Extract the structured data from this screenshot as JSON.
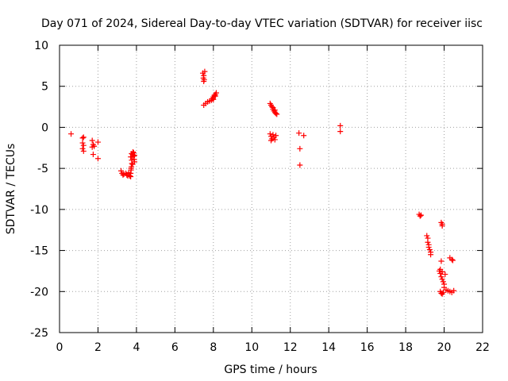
{
  "chart_data": {
    "type": "scatter",
    "title": "Day 071 of 2024, Sidereal Day-to-day VTEC variation (SDTVAR) for receiver iisc",
    "xlabel": "GPS time / hours",
    "ylabel": "SDTVAR / TECUs",
    "xlim": [
      0,
      22
    ],
    "ylim": [
      -25,
      10
    ],
    "xticks": [
      0,
      2,
      4,
      6,
      8,
      10,
      12,
      14,
      16,
      18,
      20,
      22
    ],
    "yticks": [
      -25,
      -20,
      -15,
      -10,
      -5,
      0,
      5,
      10
    ],
    "grid": true,
    "marker": "+",
    "color": "#ff0000",
    "series": [
      {
        "name": "SDTVAR",
        "points": [
          [
            0.6,
            -0.8
          ],
          [
            1.2,
            -1.3
          ],
          [
            1.25,
            -1.2
          ],
          [
            1.2,
            -1.9
          ],
          [
            1.25,
            -2.2
          ],
          [
            1.2,
            -2.6
          ],
          [
            1.25,
            -2.9
          ],
          [
            1.7,
            -1.6
          ],
          [
            1.75,
            -2.1
          ],
          [
            1.7,
            -2.4
          ],
          [
            1.8,
            -2.3
          ],
          [
            1.75,
            -3.3
          ],
          [
            2.0,
            -1.8
          ],
          [
            2.0,
            -3.8
          ],
          [
            3.2,
            -5.3
          ],
          [
            3.25,
            -5.6
          ],
          [
            3.3,
            -5.8
          ],
          [
            3.35,
            -5.7
          ],
          [
            3.45,
            -5.6
          ],
          [
            3.5,
            -5.8
          ],
          [
            3.55,
            -5.9
          ],
          [
            3.6,
            -5.5
          ],
          [
            3.65,
            -5.9
          ],
          [
            3.7,
            -6.0
          ],
          [
            3.7,
            -5.6
          ],
          [
            3.72,
            -5.2
          ],
          [
            3.74,
            -4.8
          ],
          [
            3.76,
            -4.4
          ],
          [
            3.75,
            -4.0
          ],
          [
            3.78,
            -3.6
          ],
          [
            3.8,
            -3.3
          ],
          [
            3.82,
            -3.0
          ],
          [
            3.85,
            -3.5
          ],
          [
            3.88,
            -3.9
          ],
          [
            3.9,
            -4.2
          ],
          [
            3.7,
            -3.6
          ],
          [
            3.75,
            -3.2
          ],
          [
            3.8,
            -4.5
          ],
          [
            3.85,
            -3.1
          ],
          [
            3.9,
            -3.4
          ],
          [
            3.72,
            -5.0
          ],
          [
            7.45,
            6.6
          ],
          [
            7.5,
            6.3
          ],
          [
            7.48,
            6.0
          ],
          [
            7.52,
            5.8
          ],
          [
            7.55,
            6.8
          ],
          [
            7.5,
            5.6
          ],
          [
            7.5,
            2.7
          ],
          [
            7.6,
            2.9
          ],
          [
            7.7,
            3.1
          ],
          [
            7.8,
            3.2
          ],
          [
            7.9,
            3.3
          ],
          [
            7.95,
            3.5
          ],
          [
            8.0,
            3.7
          ],
          [
            8.05,
            3.9
          ],
          [
            8.1,
            4.0
          ],
          [
            8.15,
            4.2
          ],
          [
            8.0,
            3.4
          ],
          [
            8.1,
            3.8
          ],
          [
            10.95,
            2.9
          ],
          [
            11.0,
            2.7
          ],
          [
            11.05,
            2.5
          ],
          [
            11.1,
            2.2
          ],
          [
            11.15,
            2.0
          ],
          [
            11.2,
            1.8
          ],
          [
            11.25,
            1.7
          ],
          [
            11.3,
            1.6
          ],
          [
            11.1,
            2.4
          ],
          [
            11.2,
            2.1
          ],
          [
            10.95,
            -0.8
          ],
          [
            11.0,
            -1.1
          ],
          [
            11.05,
            -1.4
          ],
          [
            11.1,
            -0.9
          ],
          [
            11.15,
            -1.2
          ],
          [
            11.2,
            -1.5
          ],
          [
            11.25,
            -1.0
          ],
          [
            11.0,
            -1.6
          ],
          [
            12.45,
            -0.7
          ],
          [
            12.7,
            -1.0
          ],
          [
            12.5,
            -2.6
          ],
          [
            12.5,
            -4.6
          ],
          [
            14.6,
            0.2
          ],
          [
            14.6,
            -0.5
          ],
          [
            18.7,
            -10.6
          ],
          [
            18.75,
            -10.8
          ],
          [
            18.8,
            -10.7
          ],
          [
            19.1,
            -13.2
          ],
          [
            19.15,
            -13.5
          ],
          [
            19.15,
            -14.0
          ],
          [
            19.2,
            -14.3
          ],
          [
            19.2,
            -14.6
          ],
          [
            19.25,
            -14.9
          ],
          [
            19.3,
            -15.2
          ],
          [
            19.3,
            -15.5
          ],
          [
            19.85,
            -11.6
          ],
          [
            19.9,
            -11.8
          ],
          [
            19.9,
            -12.0
          ],
          [
            19.85,
            -16.3
          ],
          [
            19.75,
            -17.5
          ],
          [
            19.8,
            -17.8
          ],
          [
            19.85,
            -18.2
          ],
          [
            19.9,
            -18.5
          ],
          [
            19.95,
            -18.8
          ],
          [
            20.0,
            -19.1
          ],
          [
            20.0,
            -19.5
          ],
          [
            19.8,
            -17.3
          ],
          [
            19.9,
            -17.6
          ],
          [
            20.05,
            -17.9
          ],
          [
            19.8,
            -20.0
          ],
          [
            19.85,
            -20.2
          ],
          [
            19.9,
            -20.3
          ],
          [
            19.95,
            -20.1
          ],
          [
            20.1,
            -19.8
          ],
          [
            20.2,
            -19.9
          ],
          [
            20.3,
            -20.0
          ],
          [
            20.4,
            -20.1
          ],
          [
            20.5,
            -19.9
          ],
          [
            20.3,
            -15.9
          ],
          [
            20.4,
            -16.1
          ],
          [
            20.45,
            -16.2
          ]
        ]
      }
    ]
  }
}
